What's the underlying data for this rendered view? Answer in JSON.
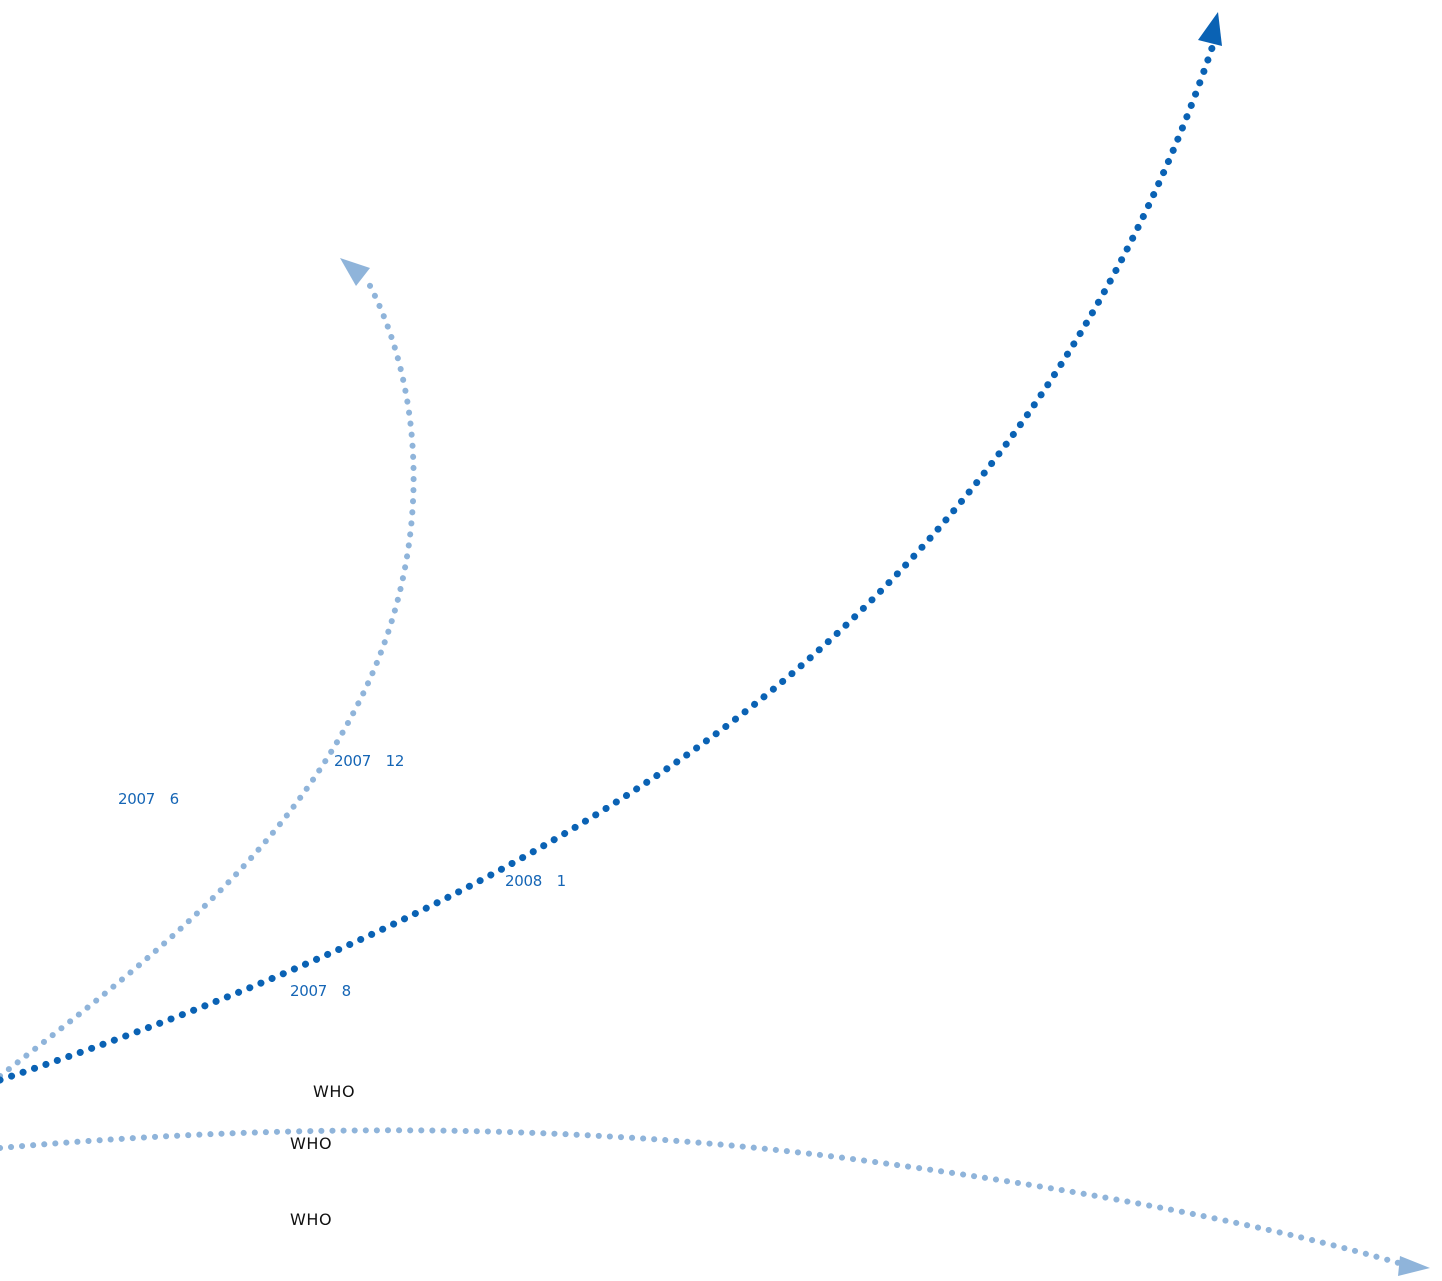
{
  "colors": {
    "dark_blue": "#0a62b4",
    "light_blue": "#8fb4da",
    "label_blue": "#1565b5",
    "label_black": "#111111"
  },
  "arrows": [
    {
      "name": "dark-rising-arrow",
      "style": "dotted",
      "color": "#0a62b4",
      "head": "arrowhead"
    },
    {
      "name": "light-curving-arrow",
      "style": "dotted",
      "color": "#8fb4da",
      "head": "arrowhead"
    },
    {
      "name": "light-bottom-arrow",
      "style": "dotted",
      "color": "#8fb4da",
      "head": "arrowhead"
    }
  ],
  "labels": {
    "date_2007_6": "2007　6",
    "date_2007_12": "2007　12",
    "date_2008_1": "2008　1",
    "date_2007_8": "2007　8",
    "who_1": "WHO",
    "who_2": "WHO",
    "who_3": "WHO"
  }
}
